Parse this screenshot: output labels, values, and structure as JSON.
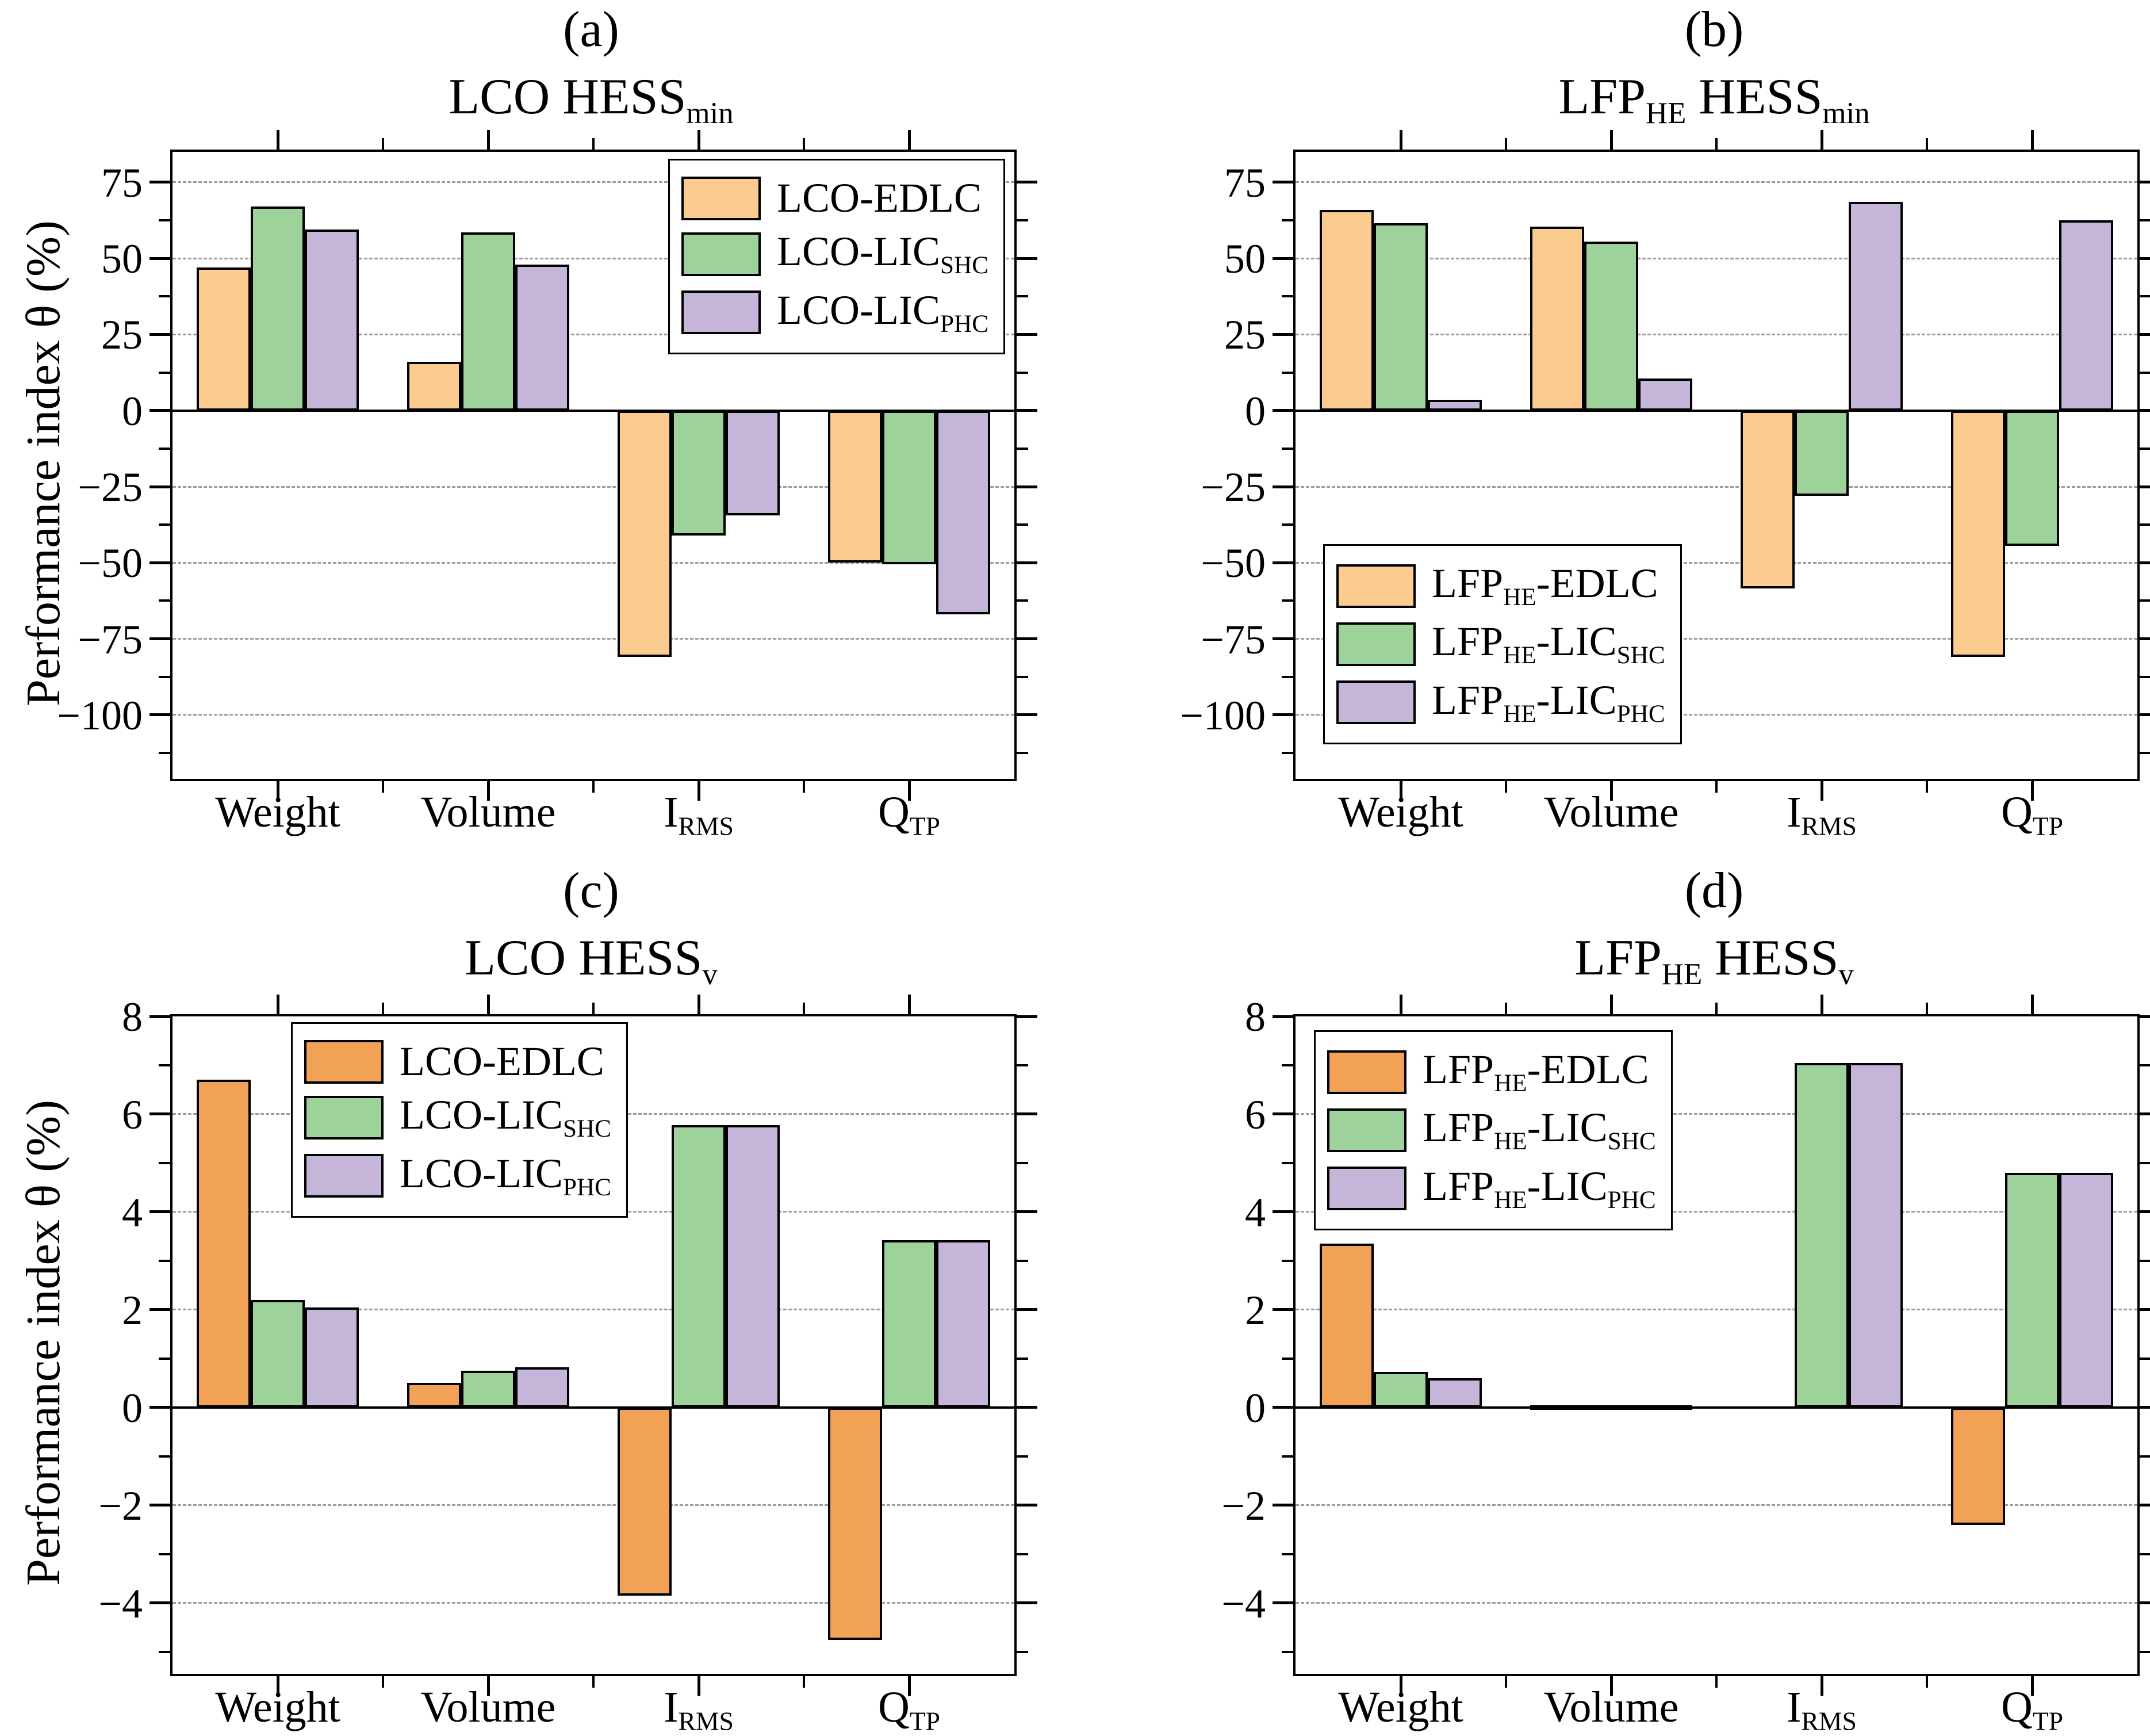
{
  "ylabel": "Performance index θ (%)",
  "colors": {
    "edlc_light": "#FCCB8F",
    "edlc_dark": "#F2A257",
    "lic_shc": "#9DD39A",
    "lic_phc": "#C5B5D9",
    "bar_border": "#000000",
    "gridline": "#9d9d9d",
    "frame": "#000000",
    "background": "#ffffff"
  },
  "categories": [
    {
      "label": "Weight",
      "segments": [
        {
          "t": "Weight"
        }
      ]
    },
    {
      "label": "Volume",
      "segments": [
        {
          "t": "Volume"
        }
      ]
    },
    {
      "label": "I_RMS",
      "segments": [
        {
          "t": "I"
        },
        {
          "t": "RMS",
          "sub": true
        }
      ]
    },
    {
      "label": "Q_TP",
      "segments": [
        {
          "t": "Q"
        },
        {
          "t": "TP",
          "sub": true
        }
      ]
    }
  ],
  "chart_data": [
    {
      "id": "a",
      "type": "bar",
      "letter": "(a)",
      "title": "LCO HESS_min",
      "title_segments": [
        {
          "t": "LCO HESS"
        },
        {
          "t": "min",
          "sub": true
        }
      ],
      "categories": [
        "Weight",
        "Volume",
        "I_RMS",
        "Q_TP"
      ],
      "xlabel": "",
      "ylabel": "Performance index θ (%)",
      "ylim": [
        -121,
        85
      ],
      "yticks": [
        75,
        50,
        25,
        0,
        -25,
        -50,
        -75,
        -100
      ],
      "minor_yticks": [
        62.5,
        37.5,
        12.5,
        -12.5,
        -37.5,
        -62.5,
        -87.5,
        -112.5
      ],
      "grid": true,
      "legend_position": "top-right",
      "series": [
        {
          "name": "LCO-EDLC",
          "segments": [
            {
              "t": "LCO-EDLC"
            }
          ],
          "color_key": "edlc_light",
          "values": [
            47,
            16,
            -81,
            -50
          ]
        },
        {
          "name": "LCO-LIC_SHC",
          "segments": [
            {
              "t": "LCO-LIC"
            },
            {
              "t": "SHC",
              "sub": true
            }
          ],
          "color_key": "lic_shc",
          "values": [
            67,
            58.5,
            -41,
            -50.5
          ]
        },
        {
          "name": "LCO-LIC_PHC",
          "segments": [
            {
              "t": "LCO-LIC"
            },
            {
              "t": "PHC",
              "sub": true
            }
          ],
          "color_key": "lic_phc",
          "values": [
            59.5,
            48,
            -34.5,
            -67
          ]
        }
      ]
    },
    {
      "id": "b",
      "type": "bar",
      "letter": "(b)",
      "title": "LFP_HE HESS_min",
      "title_segments": [
        {
          "t": "LFP"
        },
        {
          "t": "HE",
          "sub": true
        },
        {
          "t": " HESS"
        },
        {
          "t": "min",
          "sub": true
        }
      ],
      "categories": [
        "Weight",
        "Volume",
        "I_RMS",
        "Q_TP"
      ],
      "xlabel": "",
      "ylabel": "",
      "ylim": [
        -121,
        85
      ],
      "yticks": [
        75,
        50,
        25,
        0,
        -25,
        -50,
        -75,
        -100
      ],
      "minor_yticks": [
        62.5,
        37.5,
        12.5,
        -12.5,
        -37.5,
        -62.5,
        -87.5,
        -112.5
      ],
      "grid": true,
      "legend_position": "bottom-left",
      "series": [
        {
          "name": "LFP_HE-EDLC",
          "segments": [
            {
              "t": "LFP"
            },
            {
              "t": "HE",
              "sub": true
            },
            {
              "t": "-EDLC"
            }
          ],
          "color_key": "edlc_light",
          "values": [
            66,
            60.5,
            -58.5,
            -81
          ]
        },
        {
          "name": "LFP_HE-LIC_SHC",
          "segments": [
            {
              "t": "LFP"
            },
            {
              "t": "HE",
              "sub": true
            },
            {
              "t": "-LIC"
            },
            {
              "t": "SHC",
              "sub": true
            }
          ],
          "color_key": "lic_shc",
          "values": [
            61.5,
            55.5,
            -28,
            -44.5
          ]
        },
        {
          "name": "LFP_HE-LIC_PHC",
          "segments": [
            {
              "t": "LFP"
            },
            {
              "t": "HE",
              "sub": true
            },
            {
              "t": "-LIC"
            },
            {
              "t": "PHC",
              "sub": true
            }
          ],
          "color_key": "lic_phc",
          "values": [
            3.5,
            10.5,
            68.5,
            62.5
          ]
        }
      ]
    },
    {
      "id": "c",
      "type": "bar",
      "letter": "(c)",
      "title": "LCO HESS_v",
      "title_segments": [
        {
          "t": "LCO HESS"
        },
        {
          "t": "v",
          "sub": true
        }
      ],
      "categories": [
        "Weight",
        "Volume",
        "I_RMS",
        "Q_TP"
      ],
      "xlabel": "",
      "ylabel": "Performance index θ (%)",
      "ylim": [
        -5.45,
        8
      ],
      "yticks": [
        8,
        6,
        4,
        2,
        0,
        -2,
        -4
      ],
      "minor_yticks": [
        7,
        5,
        3,
        1,
        -1,
        -3,
        -5
      ],
      "grid": true,
      "legend_position": "top-left-offset",
      "series": [
        {
          "name": "LCO-EDLC",
          "segments": [
            {
              "t": "LCO-EDLC"
            }
          ],
          "color_key": "edlc_dark",
          "values": [
            6.7,
            0.5,
            -3.85,
            -4.75
          ]
        },
        {
          "name": "LCO-LIC_SHC",
          "segments": [
            {
              "t": "LCO-LIC"
            },
            {
              "t": "SHC",
              "sub": true
            }
          ],
          "color_key": "lic_shc",
          "values": [
            2.2,
            0.75,
            5.78,
            3.42
          ]
        },
        {
          "name": "LCO-LIC_PHC",
          "segments": [
            {
              "t": "LCO-LIC"
            },
            {
              "t": "PHC",
              "sub": true
            }
          ],
          "color_key": "lic_phc",
          "values": [
            2.05,
            0.82,
            5.78,
            3.42
          ]
        }
      ]
    },
    {
      "id": "d",
      "type": "bar",
      "letter": "(d)",
      "title": "LFP_HE HESS_v",
      "title_segments": [
        {
          "t": "LFP"
        },
        {
          "t": "HE",
          "sub": true
        },
        {
          "t": " HESS"
        },
        {
          "t": "v",
          "sub": true
        }
      ],
      "categories": [
        "Weight",
        "Volume",
        "I_RMS",
        "Q_TP"
      ],
      "xlabel": "",
      "ylabel": "",
      "ylim": [
        -5.45,
        8
      ],
      "yticks": [
        8,
        6,
        4,
        2,
        0,
        -2,
        -4
      ],
      "minor_yticks": [
        7,
        5,
        3,
        1,
        -1,
        -3,
        -5
      ],
      "grid": true,
      "legend_position": "top-left",
      "series": [
        {
          "name": "LFP_HE-EDLC",
          "segments": [
            {
              "t": "LFP"
            },
            {
              "t": "HE",
              "sub": true
            },
            {
              "t": "-EDLC"
            }
          ],
          "color_key": "edlc_dark",
          "values": [
            3.35,
            0.05,
            0,
            -2.4
          ]
        },
        {
          "name": "LFP_HE-LIC_SHC",
          "segments": [
            {
              "t": "LFP"
            },
            {
              "t": "HE",
              "sub": true
            },
            {
              "t": "-LIC"
            },
            {
              "t": "SHC",
              "sub": true
            }
          ],
          "color_key": "lic_shc",
          "values": [
            0.73,
            0.05,
            7.05,
            4.8
          ]
        },
        {
          "name": "LFP_HE-LIC_PHC",
          "segments": [
            {
              "t": "LFP"
            },
            {
              "t": "HE",
              "sub": true
            },
            {
              "t": "-LIC"
            },
            {
              "t": "PHC",
              "sub": true
            }
          ],
          "color_key": "lic_phc",
          "values": [
            0.6,
            0.05,
            7.05,
            4.8
          ]
        }
      ]
    }
  ]
}
